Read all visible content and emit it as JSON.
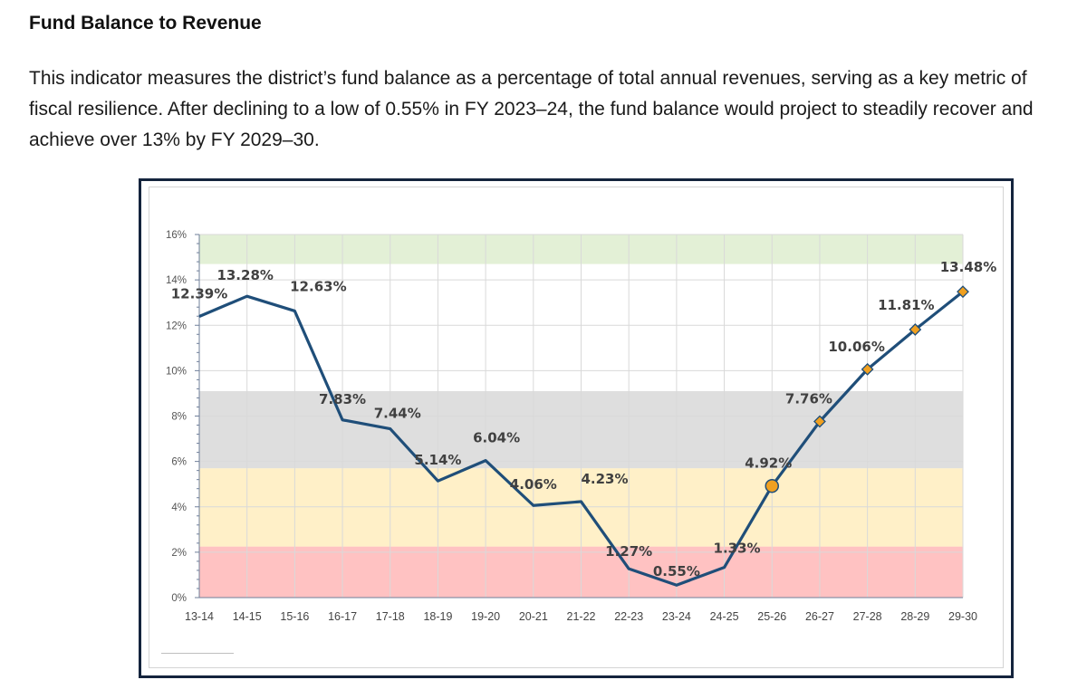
{
  "document": {
    "heading": "Fund Balance to Revenue",
    "paragraph": "This indicator measures the district’s fund balance as a percentage of total annual revenues, serving as a key metric of fiscal resilience. After declining to a low of 0.55% in FY 2023–24, the fund balance would project to steadily recover and achieve over 13% by FY 2029–30."
  },
  "chart_data": {
    "type": "line",
    "title": "",
    "xlabel": "",
    "ylabel": "",
    "categories": [
      "13-14",
      "14-15",
      "15-16",
      "16-17",
      "17-18",
      "18-19",
      "19-20",
      "20-21",
      "21-22",
      "22-23",
      "23-24",
      "24-25",
      "25-26",
      "26-27",
      "27-28",
      "28-29",
      "29-30"
    ],
    "series": [
      {
        "values": [
          12.39,
          13.28,
          12.63,
          7.83,
          7.44,
          5.14,
          6.04,
          4.06,
          4.23,
          1.27,
          0.55,
          1.33,
          4.92,
          7.76,
          10.06,
          11.81,
          13.48
        ]
      }
    ],
    "data_labels": [
      "12.39%",
      "13.28%",
      "12.63%",
      "7.83%",
      "7.44%",
      "5.14%",
      "6.04%",
      "4.06%",
      "4.23%",
      "1.27%",
      "0.55%",
      "1.33%",
      "4.92%",
      "7.76%",
      "10.06%",
      "11.81%",
      "13.48%"
    ],
    "ylim": [
      0,
      16
    ],
    "yticks": [
      "0%",
      "2%",
      "4%",
      "6%",
      "8%",
      "10%",
      "12%",
      "14%",
      "16%"
    ],
    "grid": true,
    "background_bands": [
      {
        "from": 0,
        "to": 2.25,
        "color": "#ffc2c2"
      },
      {
        "from": 2.25,
        "to": 5.7,
        "color": "#fff0c8"
      },
      {
        "from": 5.7,
        "to": 9.1,
        "color": "#dedede"
      },
      {
        "from": 14.7,
        "to": 16,
        "color": "#e3f0d6"
      }
    ],
    "markers": {
      "start_index": 12,
      "circle_index": 12,
      "marker_color": "#f0a020"
    },
    "colors": {
      "line": "#1f4e79",
      "grid": "#d9d9d9",
      "frame": "#14243d"
    }
  }
}
